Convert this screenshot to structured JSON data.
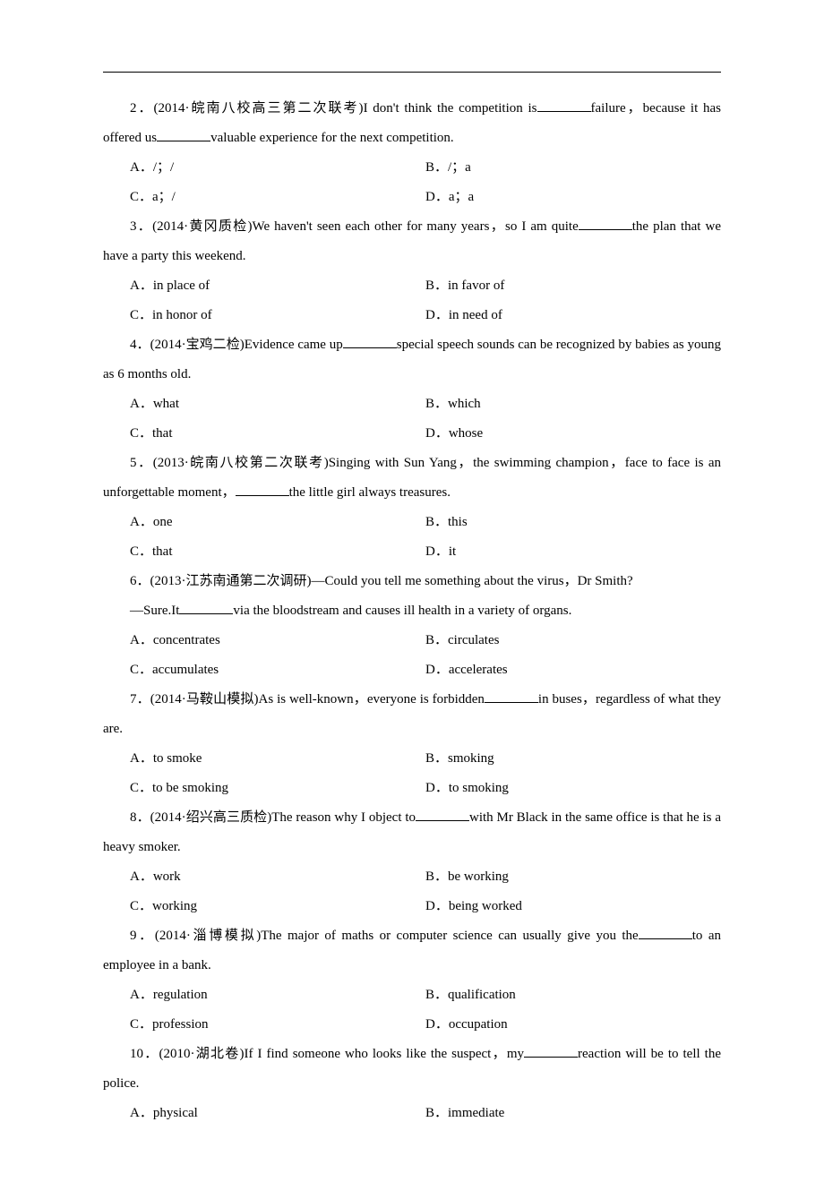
{
  "questions": [
    {
      "num": "2",
      "src": "(2014·皖南八校高三第二次联考)",
      "stem_a": "I don't think the competition is",
      "stem_b": "failure，because it has offered us",
      "stem_c": "valuable experience for the next competition.",
      "opts": {
        "A": "A．/；/",
        "B": "B．/；a",
        "C": "C．a；/",
        "D": "D．a；a"
      }
    },
    {
      "num": "3",
      "src": "(2014·黄冈质检)",
      "stem_a": "We haven't seen each other for many years，so I am quite",
      "stem_b": "the plan that we have a party this weekend.",
      "opts": {
        "A": "A．in place of",
        "B": "B．in favor of",
        "C": "C．in honor of",
        "D": "D．in need of"
      }
    },
    {
      "num": "4",
      "src": "(2014·宝鸡二检)",
      "stem_a": "Evidence came up",
      "stem_b": "special speech sounds can be recognized by babies as young as 6 months old.",
      "opts": {
        "A": "A．what",
        "B": "B．which",
        "C": "C．that",
        "D": "D．whose"
      }
    },
    {
      "num": "5",
      "src": "(2013·皖南八校第二次联考)",
      "stem_a": "Singing with Sun Yang，the swimming champion，face to face is an unforgettable moment，",
      "stem_b": "the little girl always treasures.",
      "opts": {
        "A": "A．one",
        "B": "B．this",
        "C": "C．that",
        "D": "D．it"
      }
    },
    {
      "num": "6",
      "src": "(2013·江苏南通第二次调研)",
      "line1": "—Could you tell me something about the virus，Dr Smith?",
      "line2a": "—Sure.It",
      "line2b": "via the bloodstream and causes ill health in a variety of organs.",
      "opts": {
        "A": "A．concentrates",
        "B": "B．circulates",
        "C": "C．accumulates",
        "D": "D．accelerates"
      }
    },
    {
      "num": "7",
      "src": "(2014·马鞍山模拟)",
      "stem_a": "As is well-known，everyone is forbidden",
      "stem_b": "in buses，regardless of what they are.",
      "opts": {
        "A": "A．to smoke",
        "B": "B．smoking",
        "C": "C．to be smoking",
        "D": "D．to smoking"
      }
    },
    {
      "num": "8",
      "src": "(2014·绍兴高三质检)",
      "stem_a": "The reason why I object to",
      "stem_b": "with Mr Black in the same office is that he is a heavy smoker.",
      "opts": {
        "A": "A．work",
        "B": "B．be working",
        "C": "C．working",
        "D": "D．being worked"
      }
    },
    {
      "num": "9",
      "src": "(2014·淄博模拟)",
      "stem_a": "The major of maths or computer science can usually give you the",
      "stem_b": "to an employee in a bank.",
      "opts": {
        "A": "A．regulation",
        "B": "B．qualification",
        "C": "C．profession",
        "D": "D．occupation"
      }
    },
    {
      "num": "10",
      "src": "(2010·湖北卷)",
      "stem_a": "If I find someone who looks like the suspect，my",
      "stem_b": "reaction will be to tell the police.",
      "opts": {
        "A": "A．physical",
        "B": "B．immediate"
      }
    }
  ]
}
